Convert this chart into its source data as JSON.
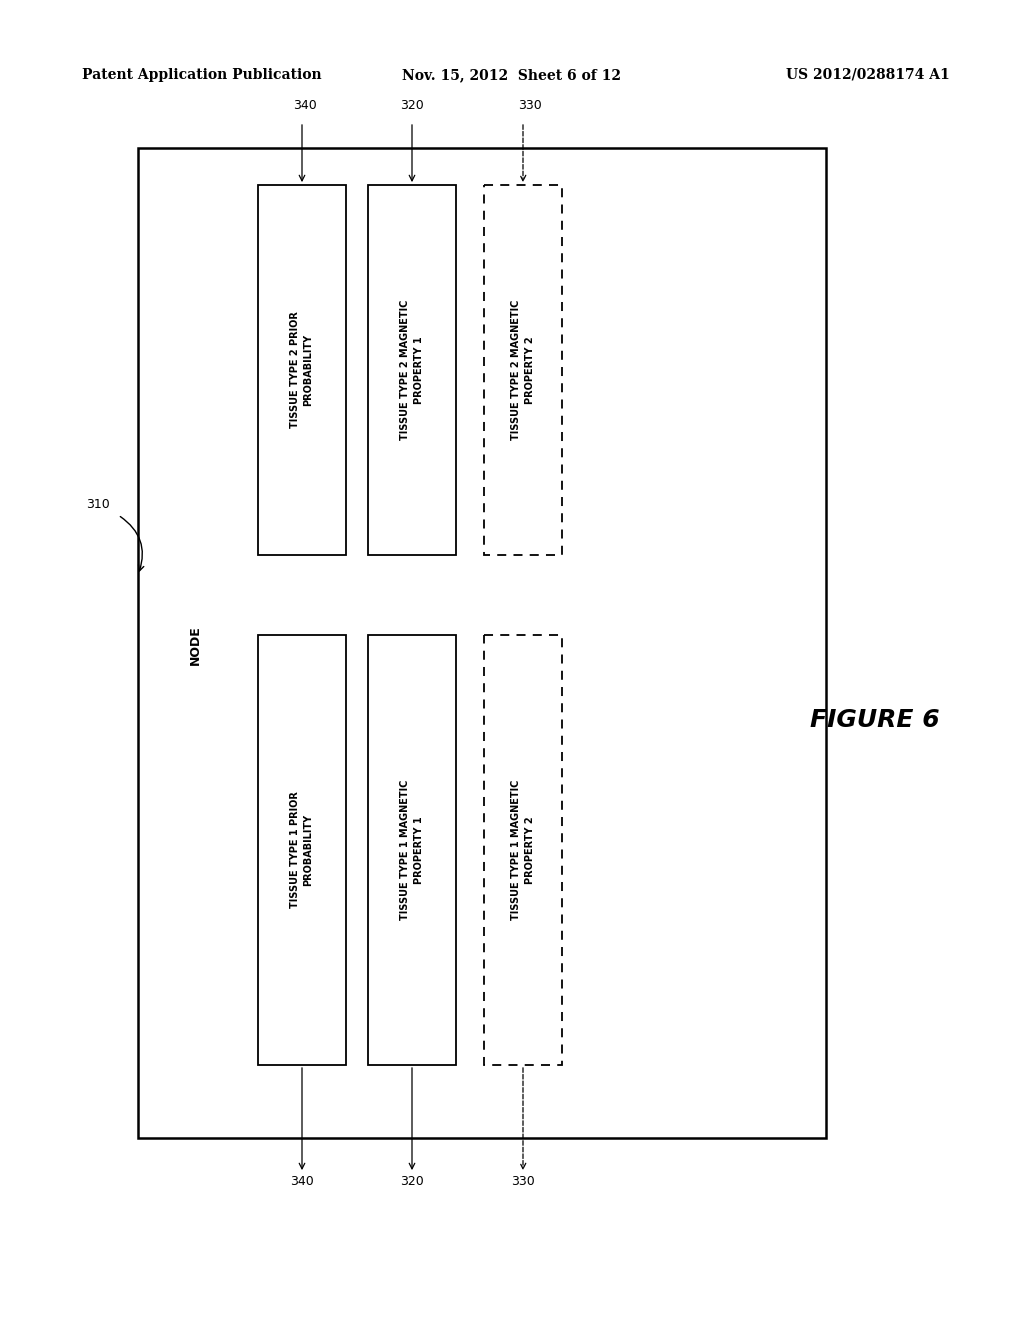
{
  "header_left": "Patent Application Publication",
  "header_center": "Nov. 15, 2012  Sheet 6 of 12",
  "header_right": "US 2012/0288174 A1",
  "figure_label": "FIGURE 6",
  "node_label": "310",
  "node_text": "NODE",
  "bg_color": "#ffffff",
  "text_color": "#000000",
  "font_size_header": 10,
  "font_size_box": 7.0,
  "font_size_ref": 9,
  "font_size_node": 9,
  "font_size_figure": 18
}
